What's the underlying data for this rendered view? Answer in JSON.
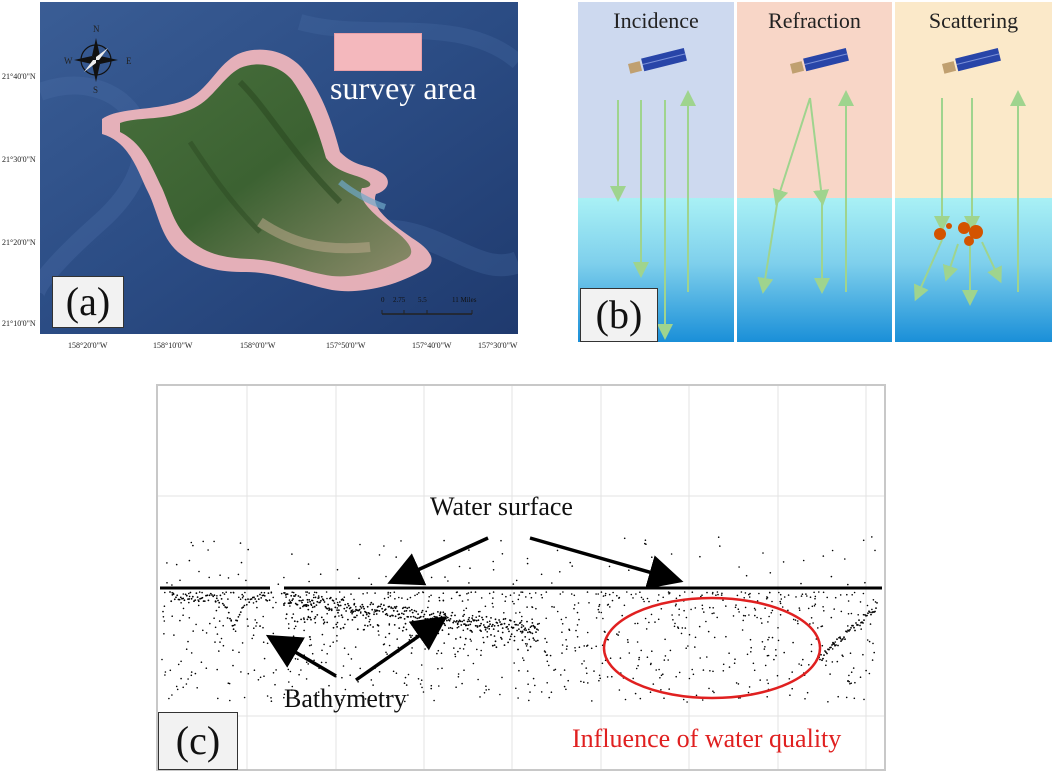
{
  "panel_a": {
    "label": "(a)",
    "legend": {
      "label": "survey area",
      "swatch_color": "#f4b8bd"
    },
    "compass": {
      "n": "N",
      "s": "S",
      "e": "E",
      "w": "W"
    },
    "scale_bar": {
      "ticks": [
        "0",
        "2.75",
        "5.5",
        "11 Miles"
      ]
    },
    "lat_ticks": [
      "21°40'0\"N",
      "21°30'0\"N",
      "21°20'0\"N",
      "21°10'0\"N"
    ],
    "lon_ticks": [
      "158°20'0\"W",
      "158°10'0\"W",
      "158°0'0\"W",
      "157°50'0\"W",
      "157°40'0\"W",
      "157°30'0\"W"
    ],
    "colors": {
      "ocean": "#2c4f86",
      "land": "#3e6b3a",
      "survey": "#f4b8bd"
    }
  },
  "panel_b": {
    "label": "(b)",
    "columns": [
      {
        "title": "Incidence",
        "bg": "#cdd9ef"
      },
      {
        "title": "Refraction",
        "bg": "#f8d6c7"
      },
      {
        "title": "Scattering",
        "bg": "#fbe9c9"
      }
    ],
    "colors": {
      "arrow": "#9fd48e",
      "water_top": "#a9f1f5",
      "water_bottom": "#1a8fd8",
      "particle": "#d35400"
    }
  },
  "panel_c": {
    "label": "(c)",
    "annotations": {
      "water_surface": "Water surface",
      "bathymetry": "Bathymetry",
      "water_quality": "Influence of water quality"
    },
    "colors": {
      "highlight": "#e02020",
      "points": "#000000",
      "grid": "#e3e3e3"
    }
  }
}
